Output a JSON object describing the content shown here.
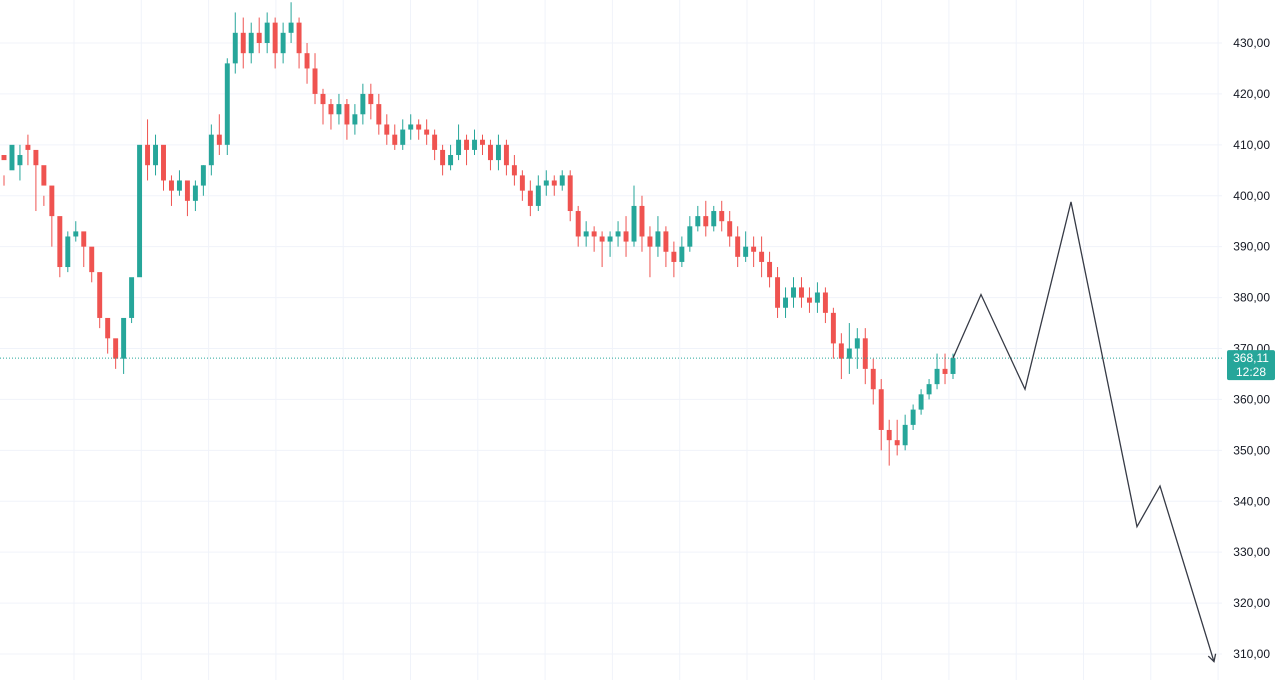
{
  "chart_data": {
    "type": "candlestick",
    "y_axis": {
      "position": "right",
      "ticks": [
        "430,00",
        "420,00",
        "410,00",
        "400,00",
        "390,00",
        "380,00",
        "370,00",
        "360,00",
        "350,00",
        "340,00",
        "330,00",
        "320,00",
        "310,00"
      ],
      "tick_values": [
        430,
        420,
        410,
        400,
        390,
        380,
        370,
        360,
        350,
        340,
        330,
        320,
        310
      ],
      "range": [
        305.7,
        438
      ]
    },
    "grid": true,
    "colors": {
      "up": "#26a69a",
      "down": "#ef5350",
      "grid": "#f0f3fa",
      "projection": "#363a45",
      "price_line": "#26a69a",
      "tag_bg": "#26a69a"
    },
    "current_price": {
      "price": "368,11",
      "countdown": "12:28",
      "value": 368.11
    },
    "candles": [
      [
        408,
        407,
        404,
        402
      ],
      [
        405,
        410,
        406,
        406
      ],
      [
        406,
        408,
        410,
        403
      ],
      [
        410,
        409,
        412,
        406
      ],
      [
        409,
        406,
        408,
        397
      ],
      [
        406,
        402,
        400,
        398
      ],
      [
        402,
        396,
        398,
        390
      ],
      [
        396,
        386,
        394,
        384
      ],
      [
        386,
        392,
        393,
        385
      ],
      [
        392,
        393,
        395,
        391
      ],
      [
        393,
        390,
        391,
        386
      ],
      [
        390,
        385,
        388,
        383
      ],
      [
        385,
        376,
        380,
        374
      ],
      [
        376,
        372,
        374,
        369
      ],
      [
        372,
        368,
        370,
        366
      ],
      [
        368,
        376,
        372,
        365
      ],
      [
        376,
        384,
        380,
        375
      ],
      [
        384,
        410,
        406,
        402
      ],
      [
        410,
        406,
        415,
        403
      ],
      [
        406,
        410,
        412,
        404
      ],
      [
        410,
        403,
        407,
        401
      ],
      [
        403,
        401,
        404,
        398
      ],
      [
        401,
        403,
        405,
        400
      ],
      [
        403,
        399,
        402,
        396
      ],
      [
        399,
        402,
        403,
        397
      ],
      [
        402,
        406,
        406,
        400
      ],
      [
        406,
        412,
        414,
        404
      ],
      [
        412,
        410,
        416,
        408
      ],
      [
        410,
        426,
        427,
        408
      ],
      [
        426,
        432,
        436,
        424
      ],
      [
        432,
        428,
        435,
        425
      ],
      [
        428,
        432,
        434,
        426
      ],
      [
        432,
        430,
        435,
        428
      ],
      [
        430,
        434,
        436,
        428
      ],
      [
        434,
        428,
        435,
        425
      ],
      [
        428,
        432,
        434,
        426
      ],
      [
        432,
        434,
        438,
        430
      ],
      [
        434,
        428,
        435,
        425
      ],
      [
        428,
        425,
        430,
        422
      ],
      [
        425,
        420,
        428,
        418
      ],
      [
        420,
        418,
        421,
        414
      ],
      [
        418,
        416,
        419,
        413
      ],
      [
        416,
        418,
        420,
        414
      ],
      [
        418,
        414,
        419,
        411
      ],
      [
        414,
        416,
        418,
        412
      ],
      [
        416,
        420,
        422,
        414
      ],
      [
        420,
        418,
        422,
        415
      ],
      [
        418,
        414,
        420,
        412
      ],
      [
        414,
        412,
        416,
        410
      ],
      [
        412,
        410,
        414,
        409
      ],
      [
        410,
        413,
        415,
        409
      ],
      [
        413,
        414,
        416,
        411
      ],
      [
        414,
        413,
        415,
        411
      ],
      [
        413,
        412,
        415,
        410
      ],
      [
        412,
        409,
        413,
        407
      ],
      [
        409,
        406,
        410,
        404
      ],
      [
        406,
        408,
        410,
        405
      ],
      [
        408,
        411,
        414,
        407
      ],
      [
        411,
        409,
        412,
        406
      ],
      [
        409,
        411,
        413,
        408
      ],
      [
        411,
        410,
        412,
        408
      ],
      [
        410,
        407,
        411,
        405
      ],
      [
        407,
        410,
        412,
        405
      ],
      [
        410,
        406,
        411,
        404
      ],
      [
        406,
        404,
        408,
        402
      ],
      [
        404,
        401,
        405,
        399
      ],
      [
        401,
        398,
        403,
        396
      ],
      [
        398,
        402,
        404,
        397
      ],
      [
        402,
        403,
        405,
        400
      ],
      [
        403,
        402,
        404,
        400
      ],
      [
        402,
        404,
        405,
        401
      ],
      [
        404,
        397,
        405,
        395
      ],
      [
        397,
        392,
        398,
        390
      ],
      [
        392,
        393,
        395,
        390
      ],
      [
        393,
        392,
        394,
        389
      ],
      [
        392,
        391,
        393,
        386
      ],
      [
        391,
        392,
        393,
        388
      ],
      [
        392,
        393,
        395,
        390
      ],
      [
        393,
        391,
        396,
        388
      ],
      [
        391,
        398,
        402,
        390
      ],
      [
        398,
        392,
        400,
        389
      ],
      [
        392,
        390,
        394,
        384
      ],
      [
        390,
        393,
        396,
        388
      ],
      [
        393,
        389,
        394,
        386
      ],
      [
        389,
        387,
        391,
        384
      ],
      [
        387,
        390,
        392,
        386
      ],
      [
        390,
        394,
        396,
        389
      ],
      [
        394,
        396,
        398,
        393
      ],
      [
        396,
        394,
        399,
        392
      ],
      [
        394,
        397,
        398,
        393
      ],
      [
        397,
        395,
        399,
        393
      ],
      [
        395,
        392,
        397,
        390
      ],
      [
        392,
        388,
        394,
        386
      ],
      [
        388,
        390,
        393,
        387
      ],
      [
        390,
        389,
        392,
        386
      ],
      [
        389,
        387,
        392,
        384
      ],
      [
        387,
        384,
        389,
        382
      ],
      [
        384,
        378,
        386,
        376
      ],
      [
        378,
        380,
        382,
        376
      ],
      [
        380,
        382,
        384,
        378
      ],
      [
        382,
        380,
        384,
        378
      ],
      [
        380,
        379,
        382,
        377
      ],
      [
        379,
        381,
        383,
        377
      ],
      [
        381,
        377,
        382,
        375
      ],
      [
        377,
        371,
        378,
        368
      ],
      [
        371,
        368,
        373,
        364
      ],
      [
        368,
        370,
        375,
        365
      ],
      [
        370,
        372,
        374,
        366
      ],
      [
        372,
        366,
        374,
        363
      ],
      [
        366,
        362,
        368,
        359
      ],
      [
        362,
        354,
        364,
        350
      ],
      [
        354,
        352,
        356,
        347
      ],
      [
        352,
        351,
        356,
        349
      ],
      [
        351,
        355,
        357,
        350
      ],
      [
        355,
        358,
        359,
        354
      ],
      [
        358,
        361,
        362,
        357
      ],
      [
        361,
        363,
        364,
        360
      ],
      [
        363,
        366,
        369,
        362
      ],
      [
        366,
        365,
        369,
        363
      ],
      [
        365,
        368.11,
        369,
        364
      ]
    ],
    "projection": {
      "points": [
        [
          368.11,
          0
        ],
        [
          380.6,
          1
        ],
        [
          362,
          2
        ],
        [
          398.8,
          3
        ],
        [
          335,
          4
        ],
        [
          343,
          5
        ],
        [
          308.5,
          6
        ]
      ],
      "arrow_end": true
    }
  }
}
